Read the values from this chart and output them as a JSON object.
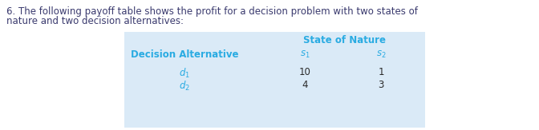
{
  "question_text_line1": "6. The following payoff table shows the profit for a decision problem with two states of",
  "question_text_line2": "nature and two decision alternatives:",
  "table_bg_color": "#daeaf7",
  "header_span_label": "State of Nature",
  "col_header_decision": "Decision Alternative",
  "col_header_s1": "$s_1$",
  "col_header_s2": "$s_2$",
  "row1_decision": "$d_1$",
  "row1_s1": "10",
  "row1_s2": "1",
  "row2_decision": "$d_2$",
  "row2_s1": "4",
  "row2_s2": "3",
  "text_color_blue": "#29ABE2",
  "text_color_question": "#3a3a6e",
  "text_color_data": "#2a2a2a",
  "question_font_size": 8.5,
  "table_header_font_size": 8.5,
  "table_data_font_size": 8.5,
  "bg_color": "#ffffff"
}
